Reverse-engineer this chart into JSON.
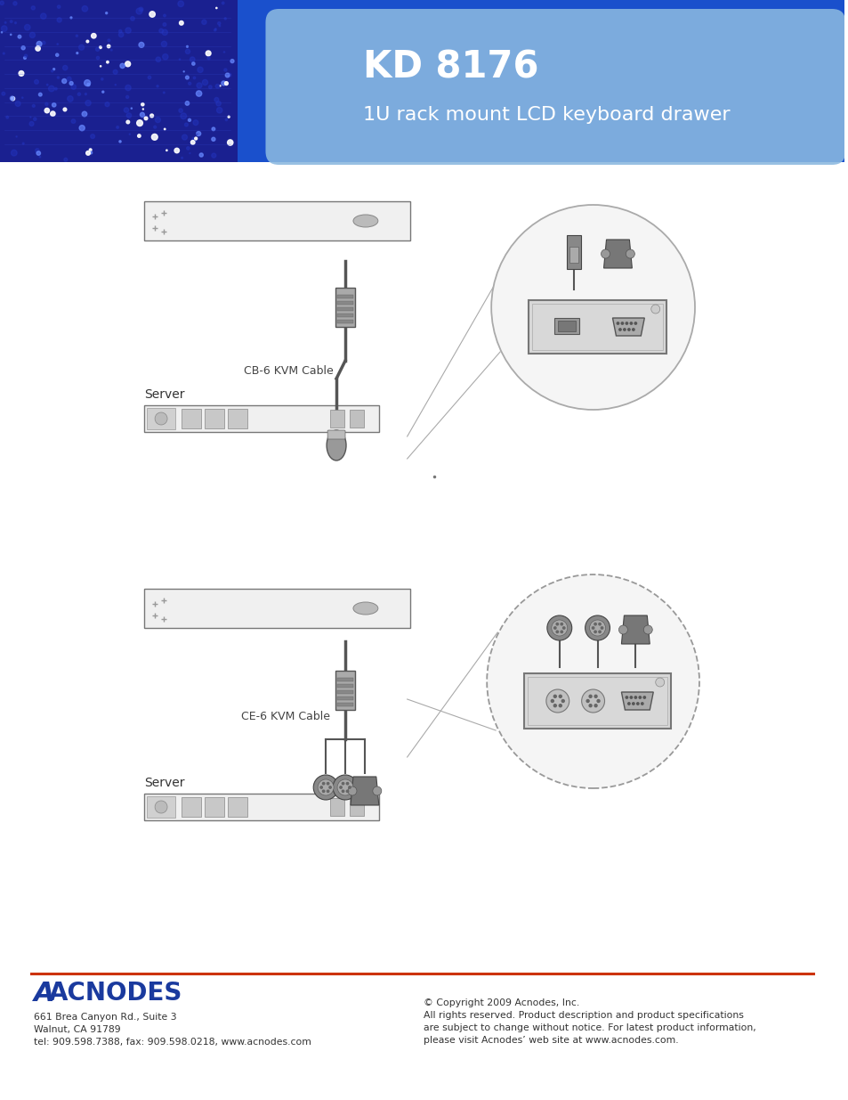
{
  "page_bg": "#ffffff",
  "header_bg_dark": "#1a50cc",
  "header_bg_medium": "#2255cc",
  "header_bg_light": "#8ab8e0",
  "header_title": "KD 8176",
  "header_subtitle": "1U rack mount LCD keyboard drawer",
  "header_title_color": "#ffffff",
  "header_subtitle_color": "#ffffff",
  "footer_line_color": "#cc3300",
  "footer_logo_text": "ACNODES",
  "footer_logo_color": "#1a3a9e",
  "footer_address1": "661 Brea Canyon Rd., Suite 3",
  "footer_address2": "Walnut, CA 91789",
  "footer_address3": "tel: 909.598.7388, fax: 909.598.0218, www.acnodes.com",
  "footer_copy1": "© Copyright 2009 Acnodes, Inc.",
  "footer_copy2": "All rights reserved. Product description and product specifications",
  "footer_copy3": "are subject to change without notice. For latest product information,",
  "footer_copy4": "please visit Acnodes’ web site at www.acnodes.com.",
  "diagram1_label_cable": "CB-6 KVM Cable",
  "diagram1_label_server": "Server",
  "diagram1_label_usb": "USB",
  "diagram1_label_vga": "VGA",
  "diagram2_label_cable": "CE-6 KVM Cable",
  "diagram2_label_server": "Server",
  "diagram2_label_kb": "KB",
  "diagram2_label_ms": "MS",
  "diagram2_label_vga": "VGA",
  "lc": "#555555",
  "lc_light": "#aaaaaa",
  "connector_dark": "#666666",
  "connector_mid": "#888888",
  "connector_light": "#cccccc",
  "panel_fill": "#e0e0e0",
  "panel_edge": "#888888",
  "rack_fill": "#f0f0f0",
  "rack_edge": "#777777"
}
